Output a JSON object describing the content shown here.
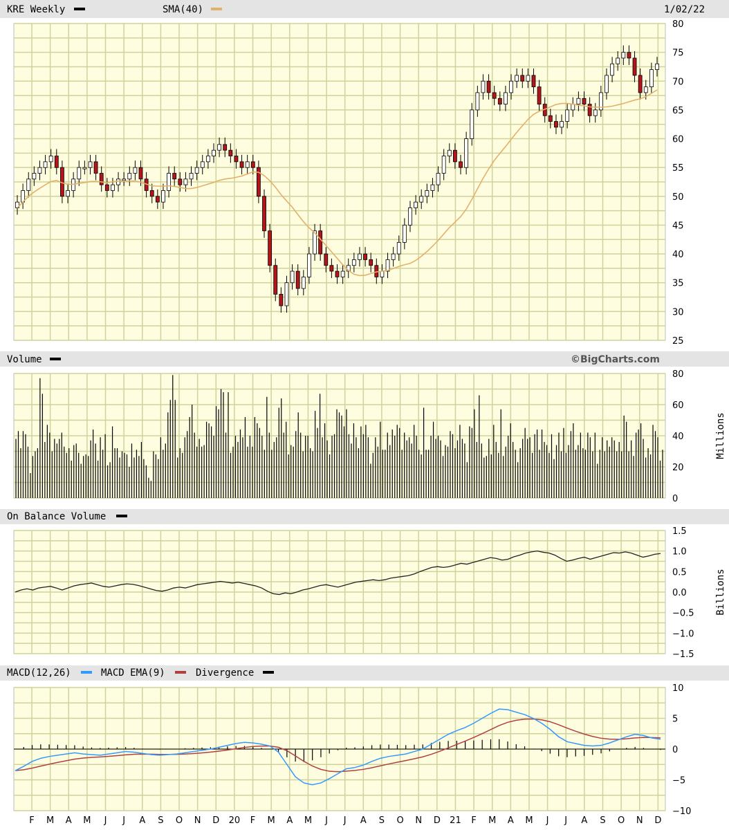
{
  "colors": {
    "panel_bg": "#fffde0",
    "grid": "#cfd39a",
    "header_bg": "#e4e4e4",
    "up_candle": "#ffffff",
    "down_candle": "#b0161c",
    "sma": "#e3b06a",
    "macd": "#3399ff",
    "macd_ema": "#b04040",
    "ink": "#000000"
  },
  "header": {
    "ticker_label": "KRE Weekly",
    "sma_label": "SMA(40)",
    "date": "1/02/22",
    "brand": "©BigCharts.com"
  },
  "months": [
    "F",
    "M",
    "A",
    "M",
    "J",
    "J",
    "A",
    "S",
    "O",
    "N",
    "D",
    "20",
    "F",
    "M",
    "A",
    "M",
    "J",
    "J",
    "A",
    "S",
    "O",
    "N",
    "D",
    "21",
    "F",
    "M",
    "A",
    "M",
    "J",
    "J",
    "A",
    "S",
    "O",
    "N",
    "D"
  ],
  "chart_data": [
    {
      "type": "candlestick",
      "title": "KRE Weekly",
      "legend": [
        "KRE Weekly",
        "SMA(40)"
      ],
      "y_ticks": [
        "80",
        "75",
        "70",
        "65",
        "60",
        "55",
        "50",
        "45",
        "40",
        "35",
        "30",
        "25"
      ],
      "ylim": [
        25,
        80
      ],
      "close_series": [
        49,
        51,
        53,
        54,
        55,
        56,
        57,
        55,
        50,
        51,
        53,
        55,
        55,
        56,
        54,
        52,
        51,
        52,
        53,
        53,
        54,
        55,
        53,
        51,
        50,
        49,
        51,
        54,
        53,
        52,
        53,
        54,
        55,
        56,
        57,
        58,
        59,
        58,
        57,
        56,
        55,
        56,
        55,
        50,
        44,
        38,
        33,
        31,
        35,
        37,
        34,
        36,
        40,
        44,
        40,
        38,
        37,
        36,
        37,
        38,
        39,
        40,
        39,
        38,
        36,
        37,
        39,
        40,
        42,
        45,
        48,
        49,
        50,
        51,
        52,
        54,
        57,
        58,
        56,
        55,
        60,
        65,
        68,
        70,
        68,
        67,
        66,
        68,
        70,
        71,
        70,
        71,
        69,
        66,
        64,
        63,
        62,
        63,
        65,
        66,
        67,
        66,
        64,
        65,
        68,
        71,
        73,
        74,
        75,
        74,
        71,
        68,
        69,
        72,
        73
      ]
    },
    {
      "type": "bar",
      "title": "Volume",
      "y_ticks": [
        "80",
        "60",
        "40",
        "20",
        "0"
      ],
      "ylim": [
        0,
        80
      ],
      "ylabel": "Millions",
      "values": [
        38,
        43,
        32,
        43,
        41,
        33,
        16,
        27,
        30,
        32,
        77,
        67,
        36,
        47,
        42,
        30,
        38,
        35,
        38,
        42,
        33,
        29,
        32,
        24,
        34,
        35,
        29,
        22,
        27,
        28,
        27,
        37,
        44,
        35,
        24,
        39,
        31,
        41,
        21,
        23,
        46,
        32,
        32,
        26,
        30,
        29,
        28,
        20,
        35,
        26,
        31,
        27,
        36,
        25,
        21,
        13,
        11,
        30,
        28,
        25,
        39,
        31,
        35,
        55,
        63,
        79,
        63,
        26,
        32,
        29,
        39,
        43,
        52,
        60,
        42,
        33,
        38,
        33,
        34,
        49,
        48,
        46,
        40,
        59,
        57,
        70,
        68,
        42,
        68,
        29,
        33,
        40,
        36,
        44,
        39,
        52,
        33,
        40,
        33,
        52,
        48,
        45,
        40,
        31,
        65,
        42,
        31,
        36,
        39,
        58,
        64,
        42,
        49,
        28,
        34,
        33,
        43,
        55,
        42,
        30,
        40,
        40,
        32,
        30,
        56,
        45,
        67,
        39,
        48,
        37,
        28,
        40,
        41,
        57,
        55,
        53,
        46,
        57,
        41,
        35,
        48,
        39,
        32,
        46,
        41,
        47,
        39,
        22,
        29,
        39,
        33,
        49,
        31,
        31,
        42,
        34,
        44,
        40,
        47,
        45,
        31,
        42,
        37,
        39,
        35,
        47,
        40,
        31,
        28,
        58,
        31,
        31,
        40,
        49,
        38,
        40,
        37,
        27,
        34,
        33,
        43,
        41,
        32,
        37,
        47,
        38,
        35,
        23,
        46,
        45,
        57,
        36,
        66,
        35,
        26,
        27,
        38,
        28,
        47,
        36,
        29,
        57,
        27,
        33,
        40,
        48,
        36,
        31,
        23,
        32,
        38,
        45,
        38,
        39,
        29,
        41,
        44,
        31,
        44,
        36,
        34,
        29,
        41,
        25,
        34,
        42,
        30,
        45,
        29,
        34,
        43,
        48,
        31,
        34,
        42,
        32,
        31,
        42,
        39,
        30,
        42,
        22,
        31,
        39,
        30,
        37,
        33,
        39,
        37,
        30,
        36,
        30,
        53,
        49,
        30,
        37,
        27,
        42,
        44,
        48,
        38,
        26,
        32,
        28,
        47,
        43,
        39,
        24,
        31
      ]
    },
    {
      "type": "line",
      "title": "On Balance Volume",
      "y_ticks": [
        "1.5",
        "1.0",
        "0.5",
        "0.0",
        "−0.5",
        "−1.0",
        "−1.5"
      ],
      "ylim": [
        -1.5,
        1.5
      ],
      "ylabel": "Billions",
      "values": [
        0.0,
        0.05,
        0.08,
        0.05,
        0.1,
        0.12,
        0.14,
        0.1,
        0.05,
        0.1,
        0.15,
        0.18,
        0.2,
        0.22,
        0.18,
        0.14,
        0.12,
        0.15,
        0.18,
        0.2,
        0.19,
        0.16,
        0.12,
        0.08,
        0.04,
        0.02,
        0.05,
        0.1,
        0.12,
        0.1,
        0.14,
        0.18,
        0.2,
        0.22,
        0.24,
        0.26,
        0.24,
        0.22,
        0.24,
        0.21,
        0.18,
        0.15,
        0.1,
        0.02,
        -0.04,
        -0.06,
        -0.02,
        -0.04,
        0.0,
        0.05,
        0.08,
        0.12,
        0.16,
        0.18,
        0.15,
        0.12,
        0.16,
        0.2,
        0.24,
        0.26,
        0.28,
        0.3,
        0.28,
        0.3,
        0.34,
        0.36,
        0.38,
        0.4,
        0.44,
        0.5,
        0.55,
        0.6,
        0.62,
        0.6,
        0.62,
        0.66,
        0.7,
        0.68,
        0.72,
        0.76,
        0.8,
        0.84,
        0.82,
        0.78,
        0.8,
        0.86,
        0.9,
        0.95,
        0.98,
        1.0,
        0.97,
        0.95,
        0.9,
        0.82,
        0.75,
        0.78,
        0.82,
        0.85,
        0.8,
        0.84,
        0.88,
        0.92,
        0.96,
        0.95,
        0.98,
        0.95,
        0.9,
        0.85,
        0.88,
        0.92,
        0.94
      ]
    },
    {
      "type": "line",
      "title": "MACD(12,26)",
      "legend": [
        "MACD(12,26)",
        "MACD EMA(9)",
        "Divergence"
      ],
      "y_ticks": [
        "10",
        "5",
        "0",
        "−5",
        "−10"
      ],
      "ylim": [
        -10,
        10
      ],
      "macd": [
        -3.5,
        -2.8,
        -2.0,
        -1.5,
        -1.2,
        -1.0,
        -0.8,
        -0.6,
        -0.8,
        -0.9,
        -1.0,
        -0.8,
        -0.6,
        -0.4,
        -0.5,
        -0.7,
        -0.9,
        -1.0,
        -0.9,
        -0.8,
        -0.6,
        -0.4,
        -0.2,
        0.0,
        0.3,
        0.6,
        0.9,
        1.1,
        1.0,
        0.8,
        0.5,
        -0.5,
        -2.5,
        -4.5,
        -5.5,
        -5.8,
        -5.5,
        -4.8,
        -4.0,
        -3.2,
        -3.0,
        -2.6,
        -2.0,
        -1.5,
        -1.2,
        -1.0,
        -0.8,
        -0.4,
        0.0,
        0.8,
        1.6,
        2.4,
        3.0,
        3.5,
        4.2,
        5.0,
        5.8,
        6.5,
        6.4,
        6.0,
        5.6,
        5.0,
        4.2,
        3.2,
        2.0,
        1.2,
        0.9,
        0.6,
        0.5,
        0.6,
        1.0,
        1.5,
        2.0,
        2.4,
        2.2,
        1.8,
        1.6
      ]
    }
  ]
}
